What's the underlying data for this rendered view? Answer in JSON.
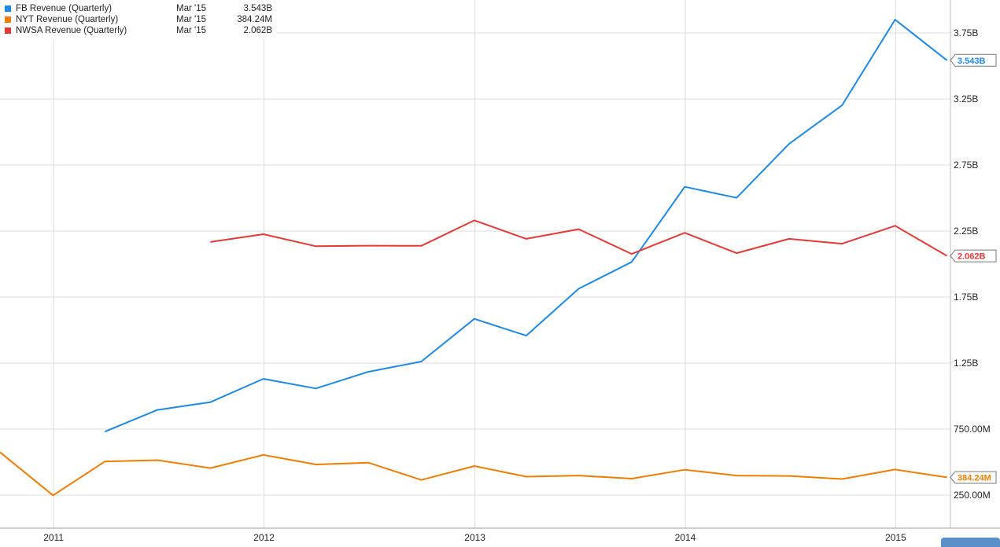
{
  "chart_data": {
    "type": "line",
    "title": "",
    "xlabel": "",
    "ylabel": "",
    "x_ticks": [
      "2011",
      "2012",
      "2013",
      "2014",
      "2015"
    ],
    "y_ticks": [
      {
        "value": 250,
        "label": "250.00M"
      },
      {
        "value": 750,
        "label": "750.00M"
      },
      {
        "value": 1250,
        "label": "1.25B"
      },
      {
        "value": 1750,
        "label": "1.75B"
      },
      {
        "value": 2250,
        "label": "2.25B"
      },
      {
        "value": 2750,
        "label": "2.75B"
      },
      {
        "value": 3250,
        "label": "3.25B"
      },
      {
        "value": 3750,
        "label": "3.75B"
      }
    ],
    "ylim": [
      0,
      4000
    ],
    "xlim": [
      "2010-09-30",
      "2015-03-31"
    ],
    "y_unit": "millions USD",
    "y_axis_position": "right",
    "grid": true,
    "legend_position": "top-left",
    "series": [
      {
        "name": "FB Revenue (Quarterly)",
        "color": "#1e88e5",
        "legend_date": "Mar '15",
        "legend_value": "3.543B",
        "last_label": "3.543B",
        "points": [
          [
            "2011-03-31",
            731
          ],
          [
            "2011-06-30",
            895
          ],
          [
            "2011-09-30",
            954
          ],
          [
            "2011-12-31",
            1131
          ],
          [
            "2012-03-31",
            1058
          ],
          [
            "2012-06-30",
            1184
          ],
          [
            "2012-09-30",
            1262
          ],
          [
            "2012-12-31",
            1585
          ],
          [
            "2013-03-31",
            1458
          ],
          [
            "2013-06-30",
            1813
          ],
          [
            "2013-09-30",
            2016
          ],
          [
            "2013-12-31",
            2585
          ],
          [
            "2014-03-31",
            2502
          ],
          [
            "2014-06-30",
            2910
          ],
          [
            "2014-09-30",
            3203
          ],
          [
            "2014-12-31",
            3851
          ],
          [
            "2015-03-31",
            3543
          ]
        ]
      },
      {
        "name": "NYT Revenue (Quarterly)",
        "color": "#ef7d00",
        "legend_date": "Mar '15",
        "legend_value": "384.24M",
        "last_label": "384.24M",
        "points": [
          [
            "2010-09-30",
            575
          ],
          [
            "2010-12-31",
            248
          ],
          [
            "2011-03-31",
            505
          ],
          [
            "2011-06-30",
            515
          ],
          [
            "2011-09-30",
            455
          ],
          [
            "2011-12-31",
            555
          ],
          [
            "2012-03-31",
            482
          ],
          [
            "2012-06-30",
            496
          ],
          [
            "2012-09-30",
            365
          ],
          [
            "2012-12-31",
            470
          ],
          [
            "2013-03-31",
            390
          ],
          [
            "2013-06-30",
            398
          ],
          [
            "2013-09-30",
            375
          ],
          [
            "2013-12-31",
            442
          ],
          [
            "2014-03-31",
            398
          ],
          [
            "2014-06-30",
            395
          ],
          [
            "2014-09-30",
            372
          ],
          [
            "2014-12-31",
            444
          ],
          [
            "2015-03-31",
            384.24
          ]
        ]
      },
      {
        "name": "NWSA Revenue (Quarterly)",
        "color": "#e53935",
        "legend_date": "Mar '15",
        "legend_value": "2.062B",
        "last_label": "2.062B",
        "points": [
          [
            "2011-09-30",
            2167
          ],
          [
            "2011-12-31",
            2226
          ],
          [
            "2012-03-31",
            2135
          ],
          [
            "2012-06-30",
            2139
          ],
          [
            "2012-09-30",
            2138
          ],
          [
            "2012-12-31",
            2331
          ],
          [
            "2013-03-31",
            2191
          ],
          [
            "2013-06-30",
            2264
          ],
          [
            "2013-09-30",
            2077
          ],
          [
            "2013-12-31",
            2237
          ],
          [
            "2014-03-31",
            2083
          ],
          [
            "2014-06-30",
            2191
          ],
          [
            "2014-09-30",
            2154
          ],
          [
            "2014-12-31",
            2290
          ],
          [
            "2015-03-31",
            2062
          ]
        ]
      }
    ]
  }
}
